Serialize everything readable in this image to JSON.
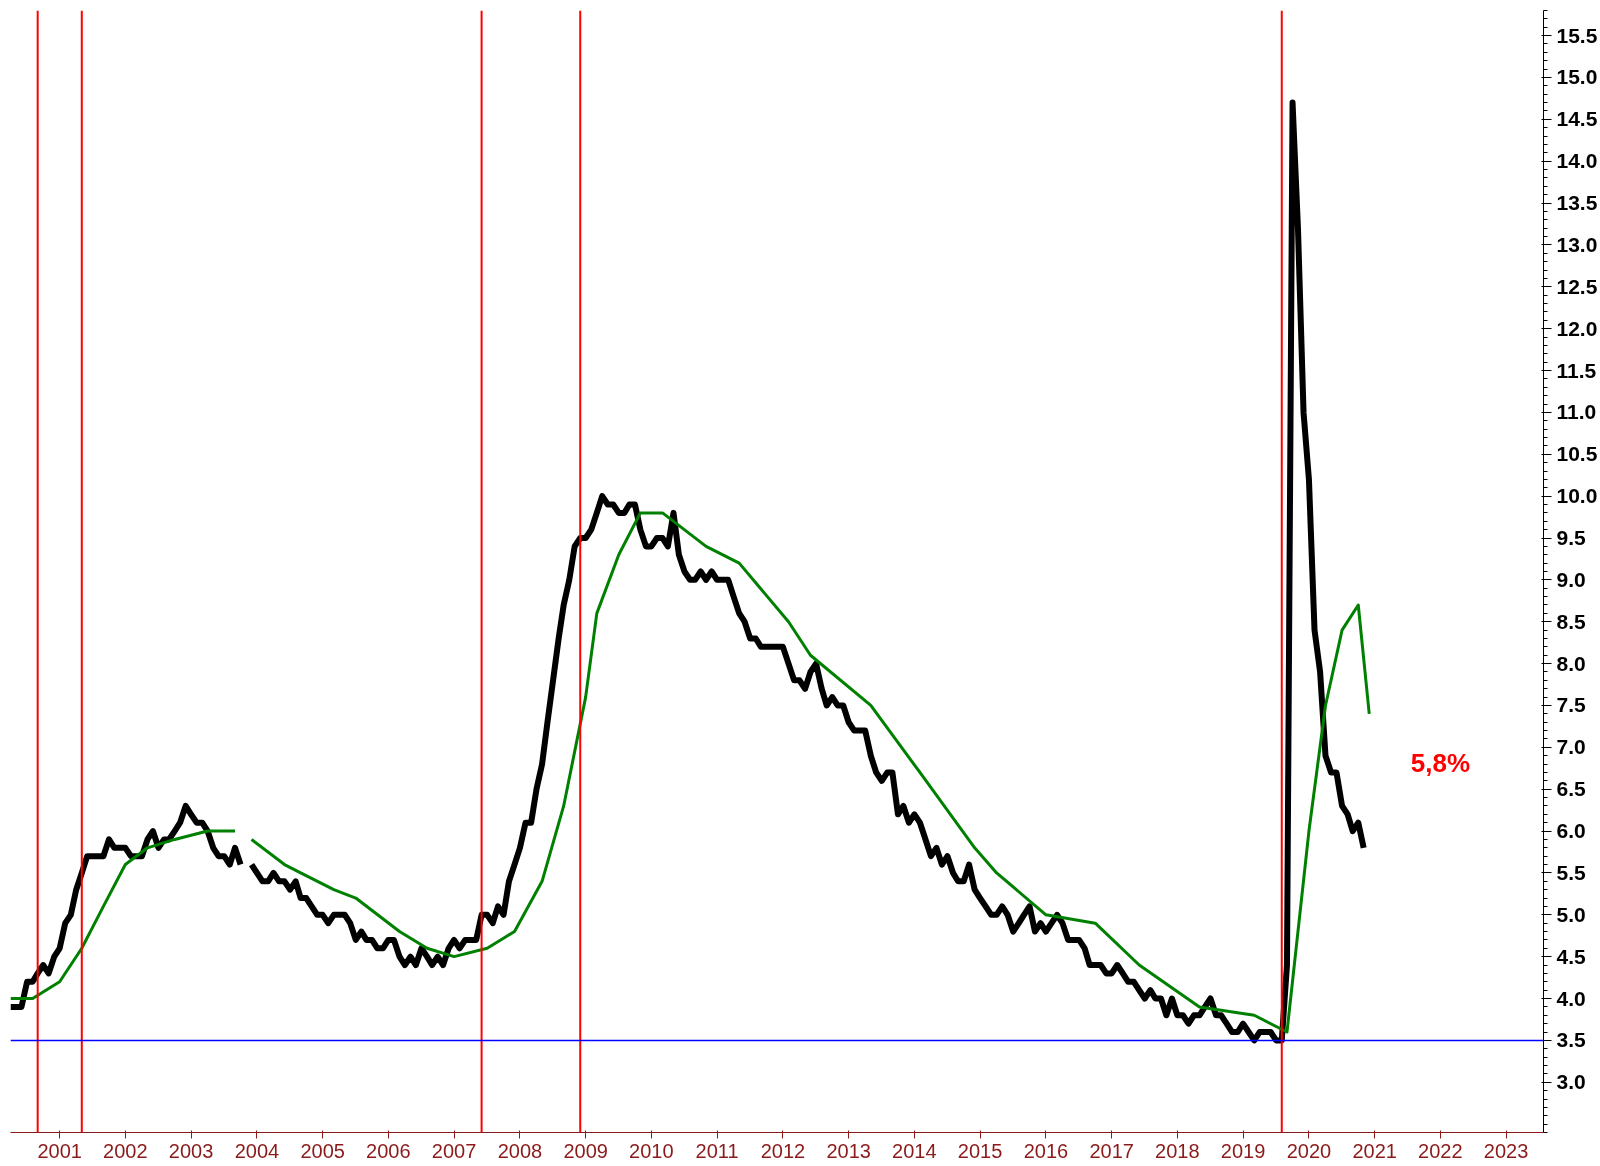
{
  "chart_data": {
    "type": "line",
    "xlim": [
      "2000-10-01",
      "2024-01-25"
    ],
    "ylim": [
      2.4,
      15.8
    ],
    "xticks": [
      {
        "value": "2001-07",
        "label": "2001"
      },
      {
        "value": "2002-07",
        "label": "2002"
      },
      {
        "value": "2003-07",
        "label": "2003"
      },
      {
        "value": "2004-07",
        "label": "2004"
      },
      {
        "value": "2005-07",
        "label": "2005"
      },
      {
        "value": "2006-07",
        "label": "2006"
      },
      {
        "value": "2007-07",
        "label": "2007"
      },
      {
        "value": "2008-07",
        "label": "2008"
      },
      {
        "value": "2009-07",
        "label": "2009"
      },
      {
        "value": "2010-07",
        "label": "2010"
      },
      {
        "value": "2011-07",
        "label": "2011"
      },
      {
        "value": "2012-07",
        "label": "2012"
      },
      {
        "value": "2013-07",
        "label": "2013"
      },
      {
        "value": "2014-07",
        "label": "2014"
      },
      {
        "value": "2015-07",
        "label": "2015"
      },
      {
        "value": "2016-07",
        "label": "2016"
      },
      {
        "value": "2017-07",
        "label": "2017"
      },
      {
        "value": "2018-07",
        "label": "2018"
      },
      {
        "value": "2019-07",
        "label": "2019"
      },
      {
        "value": "2020-07",
        "label": "2020"
      },
      {
        "value": "2021-07",
        "label": "2021"
      },
      {
        "value": "2022-07",
        "label": "2022"
      },
      {
        "value": "2023-07",
        "label": "2023"
      }
    ],
    "yticks": [
      {
        "value": 3,
        "label": "3.0"
      },
      {
        "value": 3.5,
        "label": "3.5"
      },
      {
        "value": 4,
        "label": "4.0"
      },
      {
        "value": 4.5,
        "label": "4.5"
      },
      {
        "value": 5,
        "label": "5.0"
      },
      {
        "value": 5.5,
        "label": "5.5"
      },
      {
        "value": 6,
        "label": "6.0"
      },
      {
        "value": 6.5,
        "label": "6.5"
      },
      {
        "value": 7,
        "label": "7.0"
      },
      {
        "value": 7.5,
        "label": "7.5"
      },
      {
        "value": 8,
        "label": "8.0"
      },
      {
        "value": 8.5,
        "label": "8.5"
      },
      {
        "value": 9,
        "label": "9.0"
      },
      {
        "value": 9.5,
        "label": "9.5"
      },
      {
        "value": 10,
        "label": "10.0"
      },
      {
        "value": 10.5,
        "label": "10.5"
      },
      {
        "value": 11,
        "label": "11.0"
      },
      {
        "value": 11.5,
        "label": "11.5"
      },
      {
        "value": 12,
        "label": "12.0"
      },
      {
        "value": 12.5,
        "label": "12.5"
      },
      {
        "value": 13,
        "label": "13.0"
      },
      {
        "value": 13.5,
        "label": "13.5"
      },
      {
        "value": 14,
        "label": "14.0"
      },
      {
        "value": 14.5,
        "label": "14.5"
      },
      {
        "value": 15,
        "label": "15.0"
      },
      {
        "value": 15.5,
        "label": "15.5"
      }
    ],
    "grid": false,
    "marker": "none",
    "ref_lines": [
      {
        "axis": "x",
        "value": "2001-03",
        "color": "#ff0000"
      },
      {
        "axis": "x",
        "value": "2001-11",
        "color": "#ff0000"
      },
      {
        "axis": "x",
        "value": "2007-12",
        "color": "#ff0000"
      },
      {
        "axis": "x",
        "value": "2009-06",
        "color": "#ff0000"
      },
      {
        "axis": "x",
        "value": "2020-02",
        "color": "#ff0000"
      },
      {
        "axis": "y",
        "value": 3.5,
        "color": "#0000ff"
      }
    ],
    "annotations": [
      "5,8%"
    ],
    "series": [
      {
        "color": "#000000",
        "x": [
          "2000-10",
          "2000-11",
          "2000-12",
          "2001-01",
          "2001-02",
          "2001-03",
          "2001-04",
          "2001-05",
          "2001-06",
          "2001-07",
          "2001-08",
          "2001-09",
          "2001-10",
          "2001-11",
          "2001-12",
          "2002-01",
          "2002-02",
          "2002-03",
          "2002-04",
          "2002-05",
          "2002-06",
          "2002-07",
          "2002-08",
          "2002-09",
          "2002-10",
          "2002-11",
          "2002-12",
          "2003-01",
          "2003-02",
          "2003-03",
          "2003-04",
          "2003-05",
          "2003-06",
          "2003-07",
          "2003-08",
          "2003-09",
          "2003-10",
          "2003-11",
          "2003-12",
          "2004-01",
          "2004-02",
          "2004-03",
          "2004-04",
          "2004-05",
          "2004-06",
          "2004-07",
          "2004-08",
          "2004-09",
          "2004-10",
          "2004-11",
          "2004-12",
          "2005-01",
          "2005-02",
          "2005-03",
          "2005-04",
          "2005-05",
          "2005-06",
          "2005-07",
          "2005-08",
          "2005-09",
          "2005-10",
          "2005-11",
          "2005-12",
          "2006-01",
          "2006-02",
          "2006-03",
          "2006-04",
          "2006-05",
          "2006-06",
          "2006-07",
          "2006-08",
          "2006-09",
          "2006-10",
          "2006-11",
          "2006-12",
          "2007-01",
          "2007-02",
          "2007-03",
          "2007-04",
          "2007-05",
          "2007-06",
          "2007-07",
          "2007-08",
          "2007-09",
          "2007-10",
          "2007-11",
          "2007-12",
          "2008-01",
          "2008-02",
          "2008-03",
          "2008-04",
          "2008-05",
          "2008-06",
          "2008-07",
          "2008-08",
          "2008-09",
          "2008-10",
          "2008-11",
          "2008-12",
          "2009-01",
          "2009-02",
          "2009-03",
          "2009-04",
          "2009-05",
          "2009-06",
          "2009-07",
          "2009-08",
          "2009-09",
          "2009-10",
          "2009-11",
          "2009-12",
          "2010-01",
          "2010-02",
          "2010-03",
          "2010-04",
          "2010-05",
          "2010-06",
          "2010-07",
          "2010-08",
          "2010-09",
          "2010-10",
          "2010-11",
          "2010-12",
          "2011-01",
          "2011-02",
          "2011-03",
          "2011-04",
          "2011-05",
          "2011-06",
          "2011-07",
          "2011-08",
          "2011-09",
          "2011-10",
          "2011-11",
          "2011-12",
          "2012-01",
          "2012-02",
          "2012-03",
          "2012-04",
          "2012-05",
          "2012-06",
          "2012-07",
          "2012-08",
          "2012-09",
          "2012-10",
          "2012-11",
          "2012-12",
          "2013-01",
          "2013-02",
          "2013-03",
          "2013-04",
          "2013-05",
          "2013-06",
          "2013-07",
          "2013-08",
          "2013-09",
          "2013-10",
          "2013-11",
          "2013-12",
          "2014-01",
          "2014-02",
          "2014-03",
          "2014-04",
          "2014-05",
          "2014-06",
          "2014-07",
          "2014-08",
          "2014-09",
          "2014-10",
          "2014-11",
          "2014-12",
          "2015-01",
          "2015-02",
          "2015-03",
          "2015-04",
          "2015-05",
          "2015-06",
          "2015-07",
          "2015-08",
          "2015-09",
          "2015-10",
          "2015-11",
          "2015-12",
          "2016-01",
          "2016-02",
          "2016-03",
          "2016-04",
          "2016-05",
          "2016-06",
          "2016-07",
          "2016-08",
          "2016-09",
          "2016-10",
          "2016-11",
          "2016-12",
          "2017-01",
          "2017-02",
          "2017-03",
          "2017-04",
          "2017-05",
          "2017-06",
          "2017-07",
          "2017-08",
          "2017-09",
          "2017-10",
          "2017-11",
          "2017-12",
          "2018-01",
          "2018-02",
          "2018-03",
          "2018-04",
          "2018-05",
          "2018-06",
          "2018-07",
          "2018-08",
          "2018-09",
          "2018-10",
          "2018-11",
          "2018-12",
          "2019-01",
          "2019-02",
          "2019-03",
          "2019-04",
          "2019-05",
          "2019-06",
          "2019-07",
          "2019-08",
          "2019-09",
          "2019-10",
          "2019-11",
          "2019-12",
          "2020-01",
          "2020-02",
          "2020-03",
          "2020-04",
          "2020-05",
          "2020-06",
          "2020-07",
          "2020-08",
          "2020-09",
          "2020-10",
          "2020-11",
          "2020-12",
          "2021-01",
          "2021-02",
          "2021-03",
          "2021-04",
          "2021-05"
        ],
        "values": [
          3.9,
          3.9,
          3.9,
          4.2,
          4.2,
          4.3,
          4.4,
          4.3,
          4.5,
          4.6,
          4.9,
          5.0,
          5.3,
          5.5,
          5.7,
          5.7,
          5.7,
          5.7,
          5.9,
          5.8,
          5.8,
          5.8,
          5.7,
          5.7,
          5.7,
          5.9,
          6.0,
          5.8,
          5.9,
          5.9,
          6.0,
          6.1,
          6.3,
          6.2,
          6.1,
          6.1,
          6.0,
          5.8,
          5.7,
          5.7,
          5.6,
          5.8,
          5.6,
          null,
          5.6,
          5.5,
          5.4,
          5.4,
          5.5,
          5.4,
          5.4,
          5.3,
          5.4,
          5.2,
          5.2,
          5.1,
          5.0,
          5.0,
          4.9,
          5.0,
          5.0,
          5.0,
          4.9,
          4.7,
          4.8,
          4.7,
          4.7,
          4.6,
          4.6,
          4.7,
          4.7,
          4.5,
          4.4,
          4.5,
          4.4,
          4.6,
          4.5,
          4.4,
          4.5,
          4.4,
          4.6,
          4.7,
          4.6,
          4.7,
          4.7,
          4.7,
          5.0,
          5.0,
          4.9,
          5.1,
          5.0,
          5.4,
          5.6,
          5.8,
          6.1,
          6.1,
          6.5,
          6.8,
          7.3,
          7.8,
          8.3,
          8.7,
          9.0,
          9.4,
          9.5,
          9.5,
          9.6,
          9.8,
          10.0,
          9.9,
          9.9,
          9.8,
          9.8,
          9.9,
          9.9,
          9.6,
          9.4,
          9.4,
          9.5,
          9.5,
          9.4,
          9.8,
          9.3,
          9.1,
          9.0,
          9.0,
          9.1,
          9.0,
          9.1,
          9.0,
          9.0,
          9.0,
          8.8,
          8.6,
          8.5,
          8.3,
          8.3,
          8.2,
          8.2,
          8.2,
          8.2,
          8.2,
          8.0,
          7.8,
          7.8,
          7.7,
          7.9,
          8.0,
          7.7,
          7.5,
          7.6,
          7.5,
          7.5,
          7.3,
          7.2,
          7.2,
          7.2,
          6.9,
          6.7,
          6.6,
          6.7,
          6.7,
          6.2,
          6.3,
          6.1,
          6.2,
          6.1,
          5.9,
          5.7,
          5.8,
          5.6,
          5.7,
          5.5,
          5.4,
          5.4,
          5.6,
          5.3,
          5.2,
          5.1,
          5.0,
          5.0,
          5.1,
          5.0,
          4.8,
          4.9,
          5.0,
          5.1,
          4.8,
          4.9,
          4.8,
          4.9,
          5.0,
          4.9,
          4.7,
          4.7,
          4.7,
          4.6,
          4.4,
          4.4,
          4.4,
          4.3,
          4.3,
          4.4,
          4.3,
          4.2,
          4.2,
          4.1,
          4.0,
          4.1,
          4.0,
          4.0,
          3.8,
          4.0,
          3.8,
          3.8,
          3.7,
          3.8,
          3.8,
          3.9,
          4.0,
          3.8,
          3.8,
          3.7,
          3.6,
          3.6,
          3.7,
          3.6,
          3.5,
          3.6,
          3.6,
          3.6,
          3.5,
          3.5,
          4.4,
          14.7,
          13.2,
          11.0,
          10.2,
          8.4,
          7.9,
          6.9,
          6.7,
          6.7,
          6.3,
          6.2,
          6.0,
          6.1,
          5.8
        ]
      },
      {
        "color": "#008000",
        "x": [
          "2000-10",
          "2001-02",
          "2001-07",
          "2001-11",
          "2002-03",
          "2002-07",
          "2002-11",
          "2003-04",
          "2003-10",
          "2004-03",
          "2004-04",
          "2004-06",
          "2004-12",
          "2005-03",
          "2005-09",
          "2006-01",
          "2006-09",
          "2007-02",
          "2007-07",
          "2008-01",
          "2008-06",
          "2008-11",
          "2009-03",
          "2009-07",
          "2009-09",
          "2010-01",
          "2010-05",
          "2010-09",
          "2011-05",
          "2011-11",
          "2012-08",
          "2012-12",
          "2013-11",
          "2014-08",
          "2015-06",
          "2015-10",
          "2016-07",
          "2017-04",
          "2017-12",
          "2018-11",
          "2019-09",
          "2020-03",
          "2020-07",
          "2020-10",
          "2021-01",
          "2021-04",
          "2021-06"
        ],
        "values": [
          4.0,
          4.0,
          4.2,
          4.6,
          5.1,
          5.6,
          5.8,
          5.9,
          6.0,
          6.0,
          null,
          5.9,
          5.6,
          5.5,
          5.3,
          5.2,
          4.8,
          4.6,
          4.5,
          4.6,
          4.8,
          5.4,
          6.3,
          7.6,
          8.6,
          9.3,
          9.8,
          9.8,
          9.4,
          9.2,
          8.5,
          8.1,
          7.5,
          6.7,
          5.8,
          5.5,
          5.0,
          4.9,
          4.4,
          3.9,
          3.8,
          3.6,
          6.0,
          7.5,
          8.4,
          8.7,
          7.4
        ]
      }
    ]
  }
}
